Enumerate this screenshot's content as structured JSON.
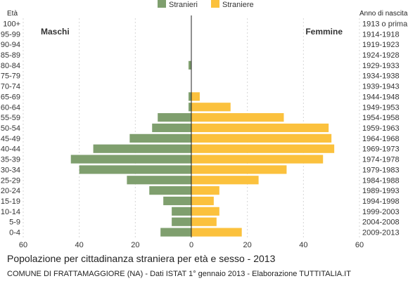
{
  "chart_data": {
    "type": "bar",
    "orientation": "horizontal-population-pyramid",
    "title": "Popolazione per cittadinanza straniera per età e sesso - 2013",
    "source": "COMUNE DI FRATTAMAGGIORE (NA) - Dati ISTAT 1° gennaio 2013 - Elaborazione TUTTITALIA.IT",
    "left_axis_header": "Età",
    "right_axis_header": "Anno di nascita",
    "left_side_label": "Maschi",
    "right_side_label": "Femmine",
    "legend_position": "top-center",
    "grid": true,
    "xlim": [
      -60,
      60
    ],
    "x_ticks": [
      "60",
      "40",
      "20",
      "0",
      "20",
      "40",
      "60"
    ],
    "age_groups": [
      "100+",
      "95-99",
      "90-94",
      "85-89",
      "80-84",
      "75-79",
      "70-74",
      "65-69",
      "60-64",
      "55-59",
      "50-54",
      "45-49",
      "40-44",
      "35-39",
      "30-34",
      "25-29",
      "20-24",
      "15-19",
      "10-14",
      "5-9",
      "0-4"
    ],
    "birth_years": [
      "1913 o prima",
      "1914-1918",
      "1919-1923",
      "1924-1928",
      "1929-1933",
      "1934-1938",
      "1939-1943",
      "1944-1948",
      "1949-1953",
      "1954-1958",
      "1959-1963",
      "1964-1968",
      "1969-1973",
      "1974-1978",
      "1979-1983",
      "1984-1988",
      "1989-1993",
      "1994-1998",
      "1999-2003",
      "2004-2008",
      "2009-2013"
    ],
    "series": [
      {
        "name": "Stranieri",
        "color": "#7f9f6e",
        "side": "left",
        "values": [
          0,
          0,
          0,
          0,
          1,
          0,
          0,
          1,
          1,
          12,
          14,
          22,
          35,
          43,
          40,
          23,
          15,
          10,
          7,
          7,
          11
        ]
      },
      {
        "name": "Straniere",
        "color": "#fbc13d",
        "side": "right",
        "values": [
          0,
          0,
          0,
          0,
          0,
          0,
          0,
          3,
          14,
          33,
          49,
          50,
          51,
          47,
          34,
          24,
          10,
          8,
          10,
          9,
          18
        ]
      }
    ]
  }
}
